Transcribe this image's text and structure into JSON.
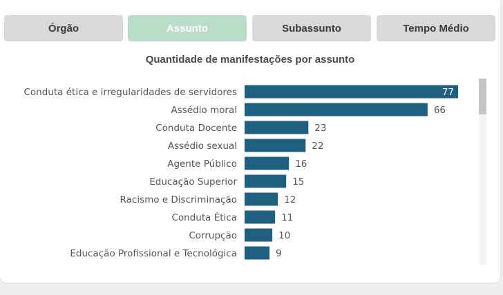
{
  "tabs": [
    {
      "label": "Órgão",
      "active": false
    },
    {
      "label": "Assunto",
      "active": true
    },
    {
      "label": "Subassunto",
      "active": false
    },
    {
      "label": "Tempo Médio",
      "active": false
    }
  ],
  "colors": {
    "bar": "#1f5f7f",
    "tab_active": "#b9ddc8",
    "tab_inactive": "#d9d9d9"
  },
  "chart_data": {
    "type": "bar",
    "orientation": "horizontal",
    "title": "Quantidade de manifestações por assunto",
    "categories": [
      "Conduta ética e irregularidades de servidores",
      "Assédio moral",
      "Conduta Docente",
      "Assédio sexual",
      "Agente Público",
      "Educação Superior",
      "Racismo e Discriminação",
      "Conduta Ética",
      "Corrupção",
      "Educação Profissional e Tecnológica"
    ],
    "values": [
      77,
      66,
      23,
      22,
      16,
      15,
      12,
      11,
      10,
      9
    ],
    "data_labels": true,
    "grid": false,
    "legend": "none"
  }
}
